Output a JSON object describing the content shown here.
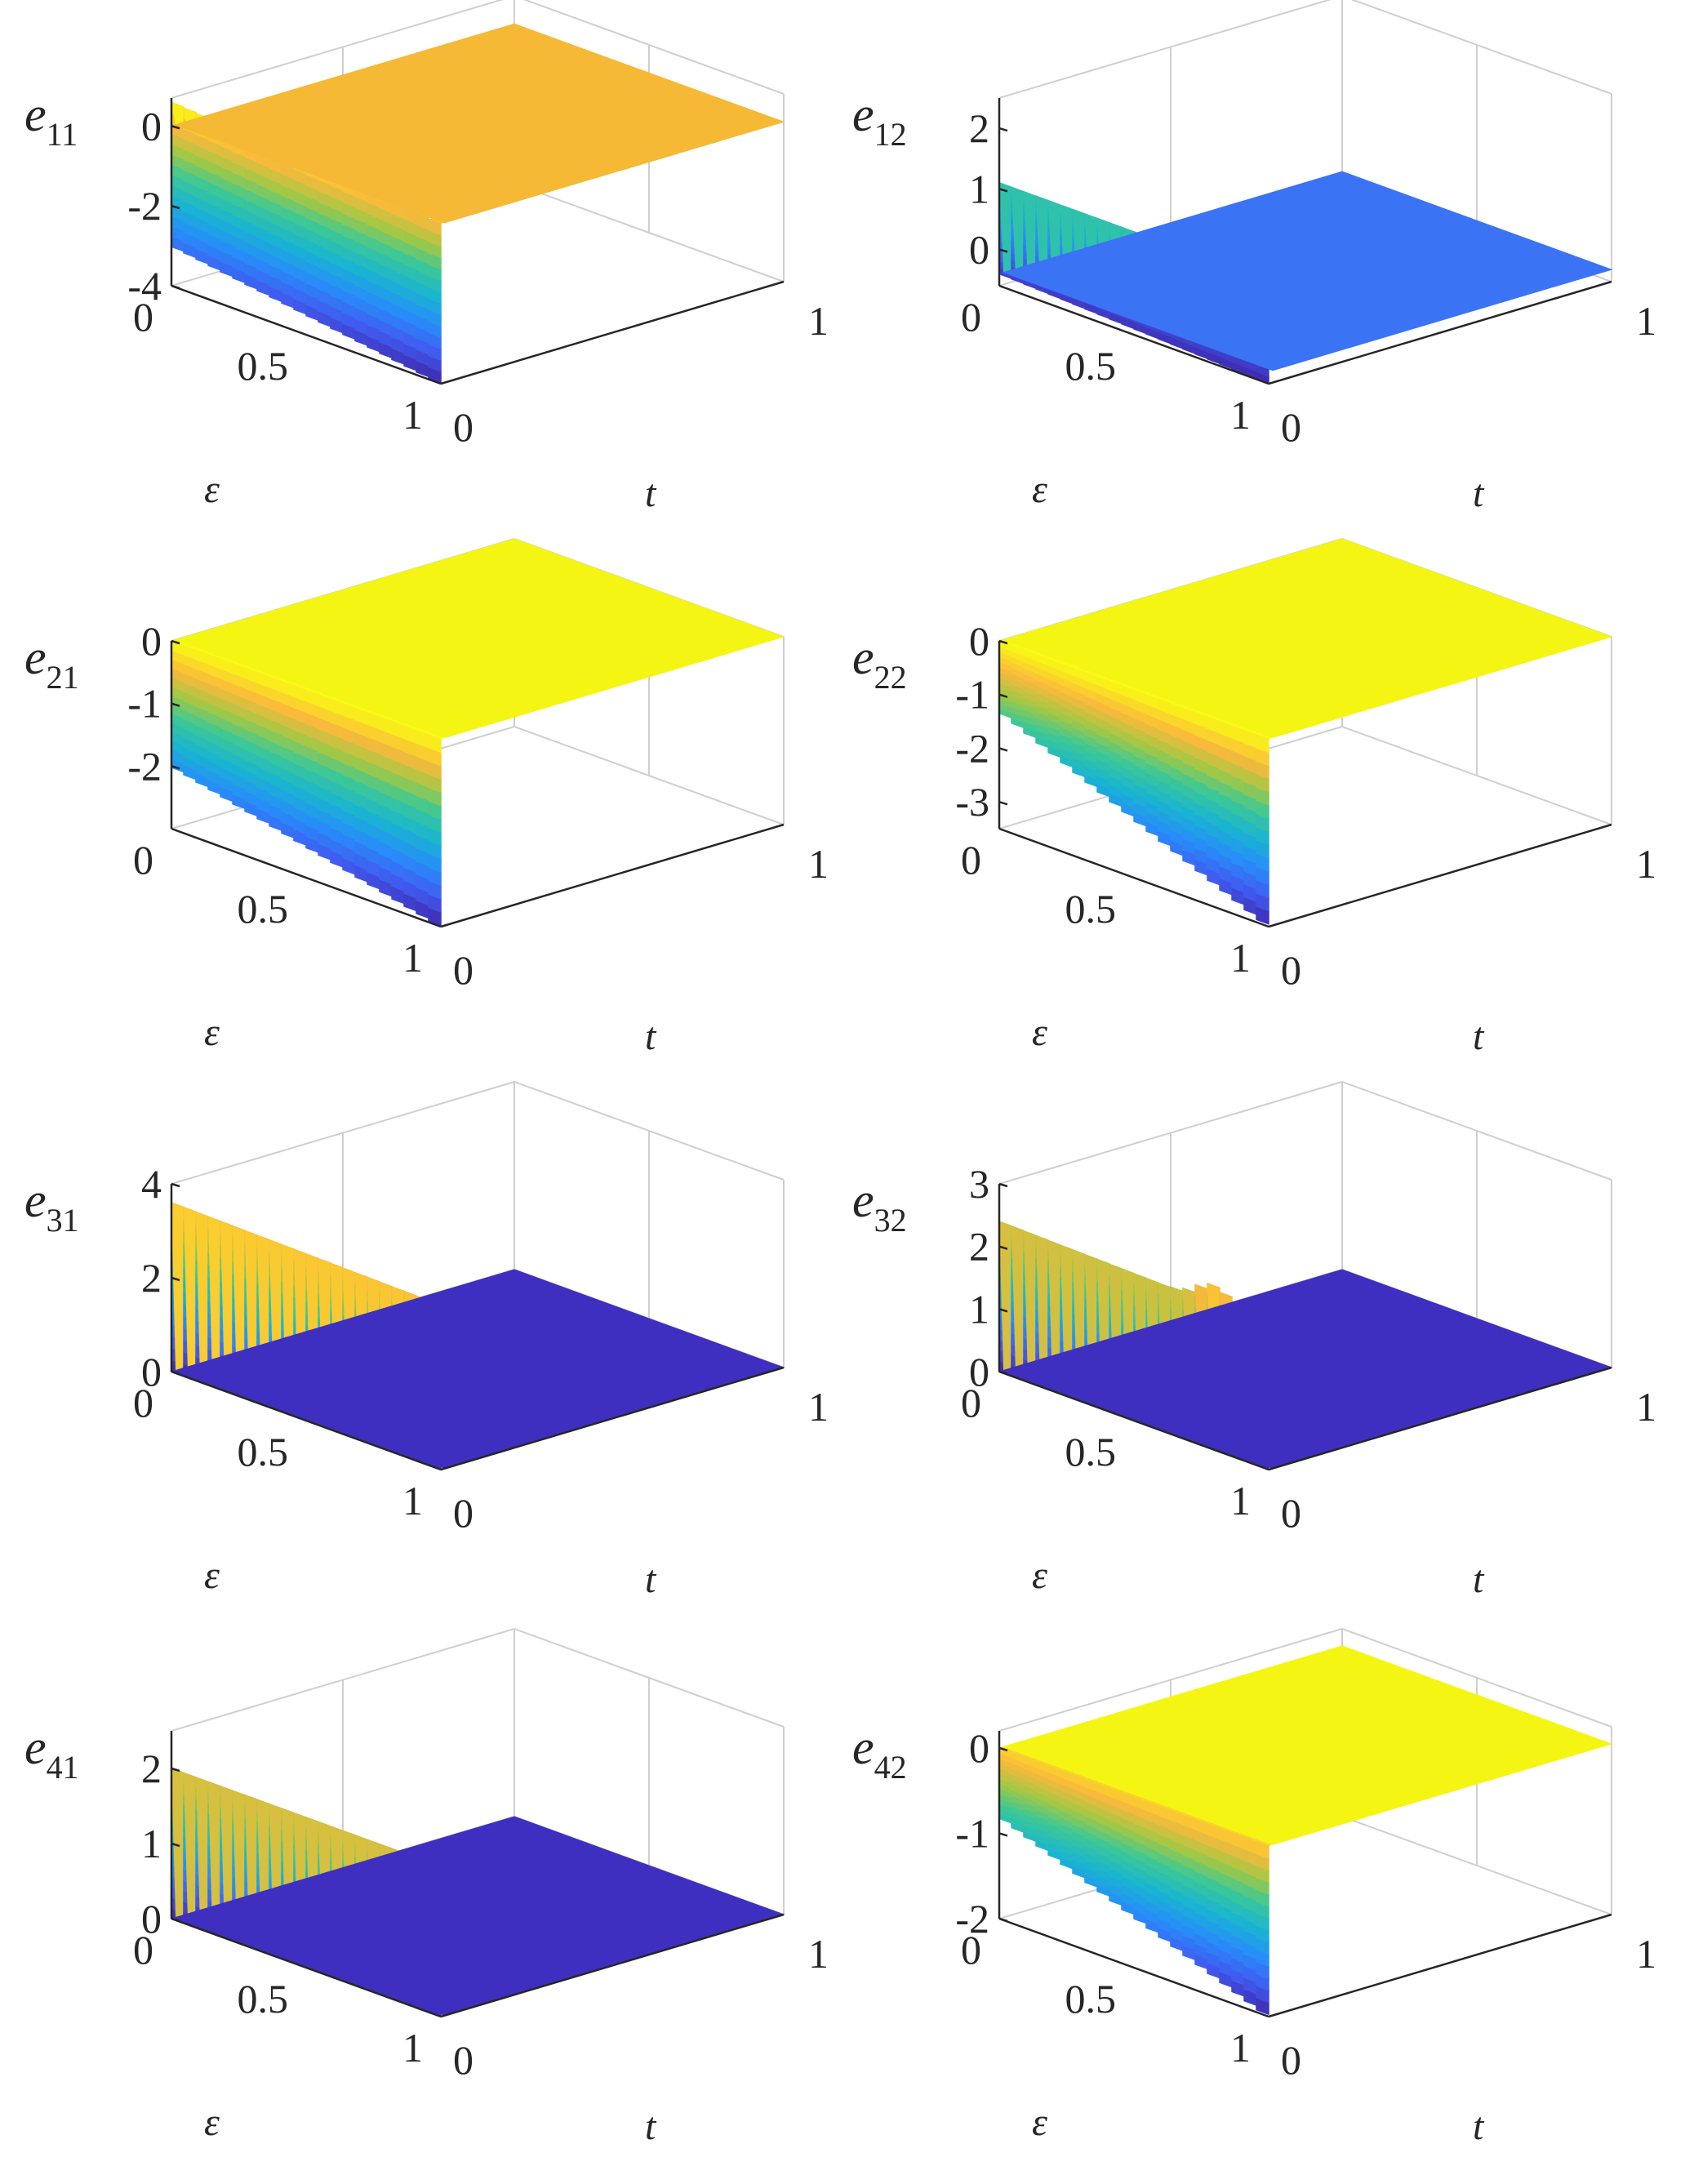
{
  "chart_data": [
    {
      "type": "surface",
      "zlabel": {
        "name": "e",
        "sub": "11"
      },
      "xlabel": "t",
      "ylabel": "ε",
      "x_ticks": [
        "0",
        "1"
      ],
      "y_ticks": [
        "0",
        "0.5",
        "1"
      ],
      "z_ticks": [
        "0",
        "-2",
        "-4"
      ],
      "zlim": [
        -4,
        0.7
      ],
      "edge_start": [
        -3.0,
        -4.0
      ],
      "edge_end": [
        0.6,
        0.0
      ],
      "plateau": 0.0,
      "bump": 0.0,
      "bump_pos": 0.8,
      "plateau_color": "#f5b935"
    },
    {
      "type": "surface",
      "zlabel": {
        "name": "e",
        "sub": "12"
      },
      "xlabel": "t",
      "ylabel": "ε",
      "x_ticks": [
        "0",
        "1"
      ],
      "y_ticks": [
        "0",
        "0.5",
        "1"
      ],
      "z_ticks": [
        "2",
        "1",
        "0"
      ],
      "zlim": [
        -0.6,
        2.5
      ],
      "edge_start": [
        -0.4,
        -0.6
      ],
      "edge_end": [
        1.1,
        1.1
      ],
      "plateau": -0.4,
      "bump": 0.0,
      "bump_pos": 0.8,
      "plateau_color": "#3b73f5"
    },
    {
      "type": "surface",
      "zlabel": {
        "name": "e",
        "sub": "21"
      },
      "xlabel": "t",
      "ylabel": "ε",
      "x_ticks": [
        "0",
        "1"
      ],
      "y_ticks": [
        "0",
        "0.5",
        "1"
      ],
      "z_ticks": [
        "0",
        "-1",
        "-2"
      ],
      "zlim": [
        -3,
        0
      ],
      "edge_start": [
        -2.0,
        -3.0
      ],
      "edge_end": [
        0.0,
        0.0
      ],
      "plateau": 0.0,
      "bump": 0.0,
      "bump_pos": 0.8,
      "plateau_color": "#f5f514"
    },
    {
      "type": "surface",
      "zlabel": {
        "name": "e",
        "sub": "22"
      },
      "xlabel": "t",
      "ylabel": "ε",
      "x_ticks": [
        "0",
        "1"
      ],
      "y_ticks": [
        "0",
        "0.5",
        "1"
      ],
      "z_ticks": [
        "0",
        "-1",
        "-2",
        "-3"
      ],
      "zlim": [
        -3.5,
        0
      ],
      "edge_start": [
        -1.3,
        -3.5
      ],
      "edge_end": [
        0.0,
        0.0
      ],
      "plateau": 0.0,
      "bump": 0.0,
      "bump_pos": 0.8,
      "plateau_color": "#f5f514"
    },
    {
      "type": "surface",
      "zlabel": {
        "name": "e",
        "sub": "31"
      },
      "xlabel": "t",
      "ylabel": "ε",
      "x_ticks": [
        "0",
        "1"
      ],
      "y_ticks": [
        "0",
        "0.5",
        "1"
      ],
      "z_ticks": [
        "4",
        "2",
        "0"
      ],
      "zlim": [
        0,
        4
      ],
      "edge_start": [
        0.0,
        0.0
      ],
      "edge_end": [
        3.6,
        3.5
      ],
      "plateau": 0.0,
      "bump": 0.0,
      "bump_pos": 0.8,
      "plateau_color": "#3f2fc0"
    },
    {
      "type": "surface",
      "zlabel": {
        "name": "e",
        "sub": "32"
      },
      "xlabel": "t",
      "ylabel": "ε",
      "x_ticks": [
        "0",
        "1"
      ],
      "y_ticks": [
        "0",
        "0.5",
        "1"
      ],
      "z_ticks": [
        "3",
        "2",
        "1",
        "0"
      ],
      "zlim": [
        0,
        3
      ],
      "edge_start": [
        0.0,
        0.0
      ],
      "edge_end": [
        2.4,
        2.3
      ],
      "plateau": 0.0,
      "bump": 0.3,
      "bump_pos": 0.8,
      "plateau_color": "#3f2fc0"
    },
    {
      "type": "surface",
      "zlabel": {
        "name": "e",
        "sub": "41"
      },
      "xlabel": "t",
      "ylabel": "ε",
      "x_ticks": [
        "0",
        "1"
      ],
      "y_ticks": [
        "0",
        "0.5",
        "1"
      ],
      "z_ticks": [
        "2",
        "1",
        "0"
      ],
      "zlim": [
        0,
        2.5
      ],
      "edge_start": [
        0.0,
        0.0
      ],
      "edge_end": [
        2.0,
        2.0
      ],
      "plateau": 0.0,
      "bump": 0.0,
      "bump_pos": 0.8,
      "plateau_color": "#3f2fc0"
    },
    {
      "type": "surface",
      "zlabel": {
        "name": "e",
        "sub": "42"
      },
      "xlabel": "t",
      "ylabel": "ε",
      "x_ticks": [
        "0",
        "1"
      ],
      "y_ticks": [
        "0",
        "0.5",
        "1"
      ],
      "z_ticks": [
        "0",
        "-1",
        "-2"
      ],
      "zlim": [
        -2,
        0.2
      ],
      "edge_start": [
        -0.8,
        -2.0
      ],
      "edge_end": [
        0.0,
        0.0
      ],
      "plateau": 0.0,
      "bump": 0.0,
      "bump_pos": 0.8,
      "plateau_color": "#f5f514"
    }
  ]
}
